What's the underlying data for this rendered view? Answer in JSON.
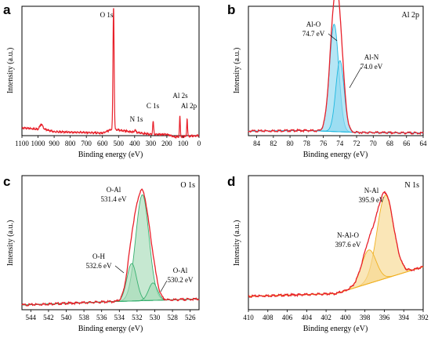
{
  "figure": {
    "panels": [
      {
        "letter": "a",
        "corner_label": "",
        "xlabel": "Binding energy (eV)",
        "ylabel": "Intensity (a.u.)",
        "xlim": [
          1100,
          0
        ],
        "ticks": [
          1100,
          1000,
          900,
          800,
          700,
          600,
          500,
          400,
          300,
          200,
          100,
          0
        ],
        "peak_labels": [
          {
            "text": "O 1s",
            "x": 531
          },
          {
            "text": "N 1s",
            "x": 397
          },
          {
            "text": "C 1s",
            "x": 285
          },
          {
            "text": "Al 2s",
            "x": 119
          },
          {
            "text": "Al 2p",
            "x": 74
          }
        ]
      },
      {
        "letter": "b",
        "corner_label": "Al 2p",
        "xlabel": "Binding energy (eV)",
        "ylabel": "Intensity (a.u.)",
        "xlim": [
          85,
          64
        ],
        "ticks": [
          84,
          82,
          80,
          78,
          76,
          74,
          72,
          70,
          68,
          66,
          64
        ],
        "peak_labels": [
          {
            "name": "Al-O",
            "energy": "74.7 eV"
          },
          {
            "name": "Al-N",
            "energy": "74.0 eV"
          }
        ]
      },
      {
        "letter": "c",
        "corner_label": "O 1s",
        "xlabel": "Binding energy (eV)",
        "ylabel": "Intensity (a.u.)",
        "xlim": [
          545,
          525
        ],
        "ticks": [
          544,
          542,
          540,
          538,
          536,
          534,
          532,
          530,
          528,
          526
        ],
        "peak_labels": [
          {
            "name": "O-Al",
            "energy": "531.4 eV"
          },
          {
            "name": "O-H",
            "energy": "532.6 eV"
          },
          {
            "name": "O-Al",
            "energy": "530.2 eV"
          }
        ]
      },
      {
        "letter": "d",
        "corner_label": "N 1s",
        "xlabel": "Binding energy (eV)",
        "ylabel": "Intensity (a.u.)",
        "xlim": [
          410,
          392
        ],
        "ticks": [
          410,
          408,
          406,
          404,
          402,
          400,
          398,
          396,
          394,
          392
        ],
        "peak_labels": [
          {
            "name": "N-Al",
            "energy": "395.9 eV"
          },
          {
            "name": "N-Al-O",
            "energy": "397.6 eV"
          }
        ]
      }
    ]
  },
  "colors": {
    "envelope": "#e8202a",
    "al2p_fill": "#8fd8f0",
    "al2p_stroke": "#1fb8e0",
    "o1s_fill": "#a8dcb8",
    "o1s_stroke": "#38b070",
    "n1s_fill": "#f8d890",
    "n1s_stroke": "#f0b020"
  },
  "chart_data": [
    {
      "type": "line",
      "panel": "a",
      "xlabel": "Binding energy (eV)",
      "ylabel": "Intensity (a.u.)",
      "xlim": [
        1100,
        0
      ],
      "ylim": [
        0,
        1
      ],
      "baseline": [
        [
          1100,
          0.06
        ],
        [
          1000,
          0.05
        ],
        [
          990,
          0.07
        ],
        [
          979,
          0.09
        ],
        [
          970,
          0.07
        ],
        [
          960,
          0.05
        ],
        [
          900,
          0.03
        ],
        [
          600,
          0.02
        ],
        [
          560,
          0.04
        ],
        [
          540,
          0.05
        ],
        [
          300,
          0.01
        ],
        [
          200,
          0.01
        ],
        [
          150,
          -0.01
        ],
        [
          0,
          0.0
        ]
      ],
      "peaks": [
        {
          "label": "O 1s",
          "center": 531,
          "height": 0.95,
          "width": 3.5
        },
        {
          "label": "N 1s",
          "center": 397,
          "height": 0.02,
          "width": 4
        },
        {
          "label": "C 1s",
          "center": 285,
          "height": 0.1,
          "width": 3
        },
        {
          "label": "Al 2s",
          "center": 119,
          "height": 0.16,
          "width": 2.5
        },
        {
          "label": "Al 2p",
          "center": 74,
          "height": 0.14,
          "width": 2.5
        }
      ]
    },
    {
      "type": "line",
      "panel": "b",
      "title": "Al 2p",
      "xlabel": "Binding energy (eV)",
      "ylabel": "Intensity (a.u.)",
      "xlim": [
        85,
        64
      ],
      "ylim": [
        0,
        1
      ],
      "background": [
        [
          85,
          0.035
        ],
        [
          78,
          0.04
        ],
        [
          72,
          0.025
        ],
        [
          64,
          0.02
        ]
      ],
      "components": [
        {
          "name": "Al-O",
          "center": 74.7,
          "height": 0.83,
          "sigma": 0.55
        },
        {
          "name": "Al-N",
          "center": 74.0,
          "height": 0.55,
          "sigma": 0.5
        }
      ]
    },
    {
      "type": "line",
      "panel": "c",
      "title": "O 1s",
      "xlabel": "Binding energy (eV)",
      "ylabel": "Intensity (a.u.)",
      "xlim": [
        545,
        525
      ],
      "ylim": [
        0,
        1
      ],
      "background": [
        [
          545,
          0.035
        ],
        [
          535,
          0.06
        ],
        [
          525,
          0.08
        ]
      ],
      "components": [
        {
          "name": "O-Al",
          "center": 531.4,
          "height": 0.79,
          "sigma": 0.75
        },
        {
          "name": "O-H",
          "center": 532.6,
          "height": 0.28,
          "sigma": 0.55
        },
        {
          "name": "O-Al",
          "center": 530.2,
          "height": 0.13,
          "sigma": 0.5
        }
      ]
    },
    {
      "type": "line",
      "panel": "d",
      "title": "N 1s",
      "xlabel": "Binding energy (eV)",
      "ylabel": "Intensity (a.u.)",
      "xlim": [
        410,
        392
      ],
      "ylim": [
        0,
        1
      ],
      "background": [
        [
          410,
          0.1
        ],
        [
          401,
          0.12
        ],
        [
          392,
          0.32
        ]
      ],
      "components": [
        {
          "name": "N-Al",
          "center": 395.9,
          "height": 0.62,
          "sigma": 0.85
        },
        {
          "name": "N-Al-O",
          "center": 397.6,
          "height": 0.25,
          "sigma": 0.75
        }
      ]
    }
  ]
}
